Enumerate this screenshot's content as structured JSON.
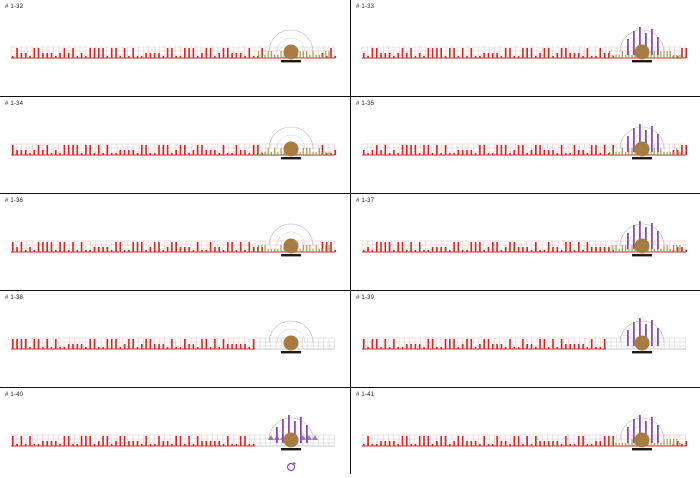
{
  "grid_title": "",
  "panels": [
    {
      "label": "# 1-32",
      "purple_bars": false,
      "green_marks": true,
      "red_right": true,
      "arrows": false,
      "refresh_icon": false
    },
    {
      "label": "# 1-33",
      "purple_bars": true,
      "green_marks": true,
      "red_right": true,
      "arrows": false,
      "refresh_icon": false
    },
    {
      "label": "# 1-34",
      "purple_bars": false,
      "green_marks": true,
      "red_right": true,
      "arrows": false,
      "refresh_icon": false
    },
    {
      "label": "# 1-35",
      "purple_bars": true,
      "green_marks": true,
      "red_right": true,
      "arrows": false,
      "refresh_icon": false
    },
    {
      "label": "# 1-36",
      "purple_bars": false,
      "green_marks": true,
      "red_right": true,
      "arrows": false,
      "refresh_icon": false
    },
    {
      "label": "# 1-37",
      "purple_bars": true,
      "green_marks": true,
      "red_right": true,
      "arrows": false,
      "refresh_icon": false
    },
    {
      "label": "# 1-38",
      "purple_bars": false,
      "green_marks": false,
      "red_right": false,
      "arrows": false,
      "refresh_icon": false
    },
    {
      "label": "# 1-39",
      "purple_bars": true,
      "green_marks": false,
      "red_right": false,
      "arrows": false,
      "refresh_icon": false
    },
    {
      "label": "# 1-40",
      "purple_bars": true,
      "green_marks": false,
      "red_right": false,
      "arrows": true,
      "refresh_icon": true
    },
    {
      "label": "# 1-41",
      "purple_bars": true,
      "green_marks": true,
      "red_right": true,
      "arrows": false,
      "refresh_icon": false
    }
  ],
  "colors": {
    "red": "#cc2a2a",
    "pink_grid": "#e9b9b9",
    "gray_grid": "#c8c8c8",
    "brown": "#a67c42",
    "green": "#7a9a3a",
    "purple": "#8a4db0",
    "black": "#1a1a1a"
  },
  "icons": {
    "arrow": "arrow-icon",
    "refresh": "refresh-icon",
    "ball": "ball-icon",
    "platform": "platform-icon"
  }
}
